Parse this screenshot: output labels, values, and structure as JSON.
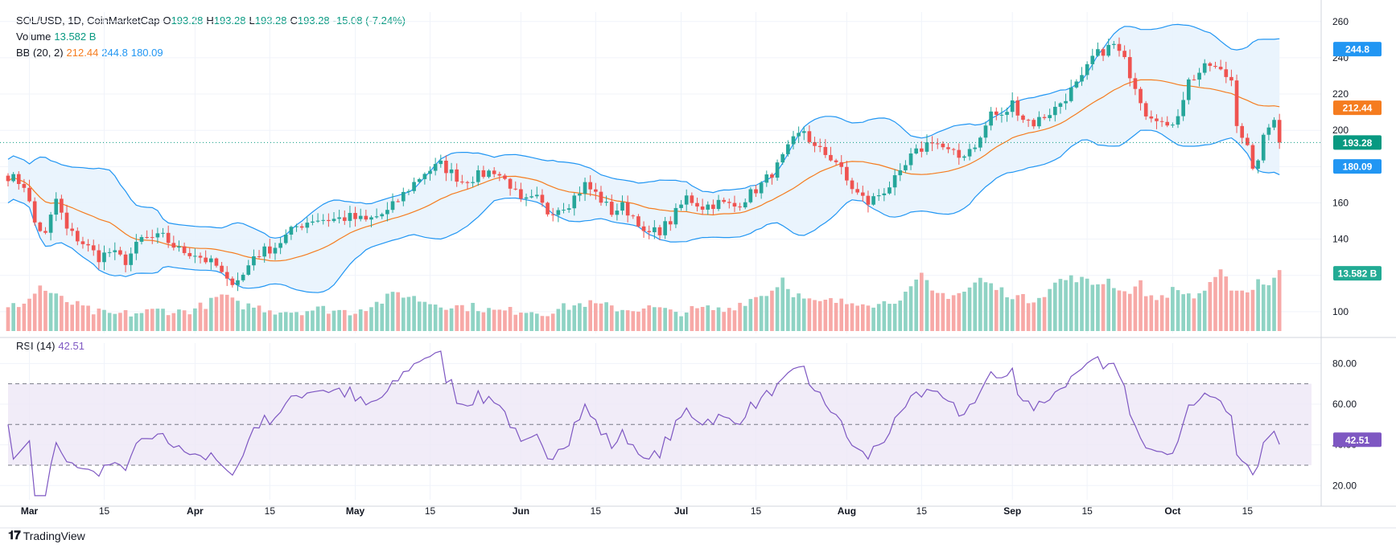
{
  "legend": {
    "symbol": "SOL/USD, 1D, CoinMarketCap",
    "open_label": "O",
    "open": "193.28",
    "high_label": "H",
    "high": "193.28",
    "low_label": "L",
    "low": "193.28",
    "close_label": "C",
    "close": "193.28",
    "change": "-15.08 (-7.24%)",
    "volume_label": "Volume",
    "volume_value": "13.582 B",
    "bb_label": "BB (20, 2)",
    "bb_basis": "212.44",
    "bb_upper": "244.8",
    "bb_lower": "180.09",
    "rsi_label": "RSI (14)",
    "rsi_value": "42.51"
  },
  "badges": {
    "upper": "244.8",
    "basis": "212.44",
    "price": "193.28",
    "lower": "180.09",
    "volume": "13.582 B",
    "rsi": "42.51"
  },
  "branding": {
    "name": "TradingView"
  },
  "colors": {
    "up": "#26a69a",
    "down": "#ef5350",
    "vol_up": "#8fd3c4",
    "vol_down": "#f7a9a7",
    "bb_basis": "#f57c1f",
    "bb_band": "#2196f3",
    "bb_fill": "#e8f3fd",
    "rsi_line": "#7e57c2",
    "rsi_fill": "#ede7f6",
    "price_badge": "#089981",
    "text": "#131722",
    "grid": "#f0f3fa"
  },
  "chart_data": [
    {
      "type": "candlestick",
      "title": "SOL/USD, 1D, CoinMarketCap",
      "y_ticks": [
        100,
        120,
        140,
        160,
        180,
        200,
        220,
        240,
        260
      ],
      "y_tick_labels": [
        "100",
        "",
        "140",
        "160",
        "",
        "200",
        "220",
        "240",
        "260"
      ],
      "ylim": [
        88,
        263
      ],
      "x_ticks": [
        {
          "day": 0,
          "label": "Mar"
        },
        {
          "day": 14,
          "label": "15"
        },
        {
          "day": 31,
          "label": "Apr"
        },
        {
          "day": 45,
          "label": "15"
        },
        {
          "day": 61,
          "label": "May"
        },
        {
          "day": 75,
          "label": "15"
        },
        {
          "day": 92,
          "label": "Jun"
        },
        {
          "day": 106,
          "label": "15"
        },
        {
          "day": 122,
          "label": "Jul"
        },
        {
          "day": 136,
          "label": "15"
        },
        {
          "day": 153,
          "label": "Aug"
        },
        {
          "day": 167,
          "label": "15"
        },
        {
          "day": 184,
          "label": "Sep"
        },
        {
          "day": 198,
          "label": "15"
        },
        {
          "day": 214,
          "label": "Oct"
        },
        {
          "day": 228,
          "label": "15"
        }
      ],
      "x_start_day": -4,
      "x_end_day": 240,
      "current_price": 193.28,
      "grid": true,
      "anchors": [
        [
          -4,
          175
        ],
        [
          -1,
          170
        ],
        [
          1,
          149
        ],
        [
          3,
          142
        ],
        [
          5,
          162
        ],
        [
          7,
          145
        ],
        [
          10,
          138
        ],
        [
          13,
          130
        ],
        [
          15,
          133
        ],
        [
          18,
          128
        ],
        [
          21,
          140
        ],
        [
          25,
          141
        ],
        [
          28,
          134
        ],
        [
          31,
          132
        ],
        [
          35,
          125
        ],
        [
          37,
          116
        ],
        [
          40,
          120
        ],
        [
          42,
          131
        ],
        [
          46,
          136
        ],
        [
          50,
          147
        ],
        [
          53,
          151
        ],
        [
          57,
          151
        ],
        [
          60,
          152
        ],
        [
          63,
          150
        ],
        [
          67,
          155
        ],
        [
          71,
          168
        ],
        [
          74,
          177
        ],
        [
          77,
          181
        ],
        [
          81,
          172
        ],
        [
          84,
          175
        ],
        [
          87,
          178
        ],
        [
          90,
          170
        ],
        [
          92,
          160
        ],
        [
          95,
          162
        ],
        [
          97,
          155
        ],
        [
          101,
          160
        ],
        [
          104,
          170
        ],
        [
          106,
          165
        ],
        [
          109,
          155
        ],
        [
          111,
          158
        ],
        [
          114,
          150
        ],
        [
          115,
          142
        ],
        [
          118,
          145
        ],
        [
          120,
          150
        ],
        [
          123,
          163
        ],
        [
          126,
          158
        ],
        [
          129,
          160
        ],
        [
          132,
          158
        ],
        [
          135,
          165
        ],
        [
          137,
          170
        ],
        [
          140,
          180
        ],
        [
          143,
          194
        ],
        [
          145,
          200
        ],
        [
          147,
          190
        ],
        [
          149,
          187
        ],
        [
          151,
          183
        ],
        [
          153,
          172
        ],
        [
          155,
          165
        ],
        [
          157,
          160
        ],
        [
          160,
          167
        ],
        [
          163,
          175
        ],
        [
          165,
          185
        ],
        [
          167,
          190
        ],
        [
          169,
          195
        ],
        [
          172,
          188
        ],
        [
          174,
          185
        ],
        [
          176,
          190
        ],
        [
          178,
          195
        ],
        [
          180,
          210
        ],
        [
          182,
          207
        ],
        [
          184,
          215
        ],
        [
          186,
          207
        ],
        [
          188,
          204
        ],
        [
          190,
          208
        ],
        [
          192,
          212
        ],
        [
          195,
          222
        ],
        [
          197,
          228
        ],
        [
          199,
          240
        ],
        [
          201,
          244
        ],
        [
          203,
          247
        ],
        [
          205,
          238
        ],
        [
          207,
          225
        ],
        [
          209,
          210
        ],
        [
          211,
          208
        ],
        [
          213,
          200
        ],
        [
          215,
          210
        ],
        [
          217,
          227
        ],
        [
          219,
          232
        ],
        [
          221,
          236
        ],
        [
          223,
          232
        ],
        [
          225,
          228
        ],
        [
          226,
          205
        ],
        [
          228,
          190
        ],
        [
          229,
          176
        ],
        [
          231,
          195
        ],
        [
          233,
          208
        ],
        [
          234,
          193.28
        ]
      ],
      "volume_anchors": [
        [
          -4,
          5.2
        ],
        [
          0,
          7.5
        ],
        [
          2,
          10.5
        ],
        [
          5,
          8
        ],
        [
          9,
          6
        ],
        [
          12,
          4.5
        ],
        [
          15,
          3.8
        ],
        [
          20,
          4.2
        ],
        [
          25,
          5
        ],
        [
          28,
          4.5
        ],
        [
          31,
          5.2
        ],
        [
          34,
          6.8
        ],
        [
          36,
          8.5
        ],
        [
          39,
          6.2
        ],
        [
          42,
          5.8
        ],
        [
          46,
          4.8
        ],
        [
          50,
          4.7
        ],
        [
          55,
          5.2
        ],
        [
          60,
          4.5
        ],
        [
          65,
          6.5
        ],
        [
          69,
          9
        ],
        [
          71,
          8.2
        ],
        [
          74,
          7
        ],
        [
          77,
          6.2
        ],
        [
          80,
          5.8
        ],
        [
          84,
          5.6
        ],
        [
          87,
          4.6
        ],
        [
          90,
          4.7
        ],
        [
          93,
          5
        ],
        [
          96,
          4.2
        ],
        [
          100,
          5.5
        ],
        [
          104,
          6.5
        ],
        [
          108,
          5.8
        ],
        [
          112,
          5
        ],
        [
          115,
          5.5
        ],
        [
          118,
          5.2
        ],
        [
          120,
          4.3
        ],
        [
          123,
          4.7
        ],
        [
          127,
          5.3
        ],
        [
          130,
          4.8
        ],
        [
          133,
          6.5
        ],
        [
          136,
          8
        ],
        [
          139,
          9.5
        ],
        [
          141,
          12.5
        ],
        [
          143,
          9
        ],
        [
          145,
          7.5
        ],
        [
          147,
          6.5
        ],
        [
          150,
          7
        ],
        [
          153,
          6.6
        ],
        [
          156,
          7.2
        ],
        [
          159,
          6.2
        ],
        [
          162,
          7.5
        ],
        [
          165,
          9.5
        ],
        [
          167,
          13
        ],
        [
          169,
          9
        ],
        [
          172,
          8.5
        ],
        [
          175,
          9.2
        ],
        [
          178,
          12.2
        ],
        [
          181,
          10
        ],
        [
          184,
          8.5
        ],
        [
          187,
          7.2
        ],
        [
          190,
          9
        ],
        [
          193,
          12
        ],
        [
          196,
          12.5
        ],
        [
          199,
          11
        ],
        [
          202,
          12
        ],
        [
          205,
          9
        ],
        [
          208,
          11
        ],
        [
          210,
          7.5
        ],
        [
          212,
          8.2
        ],
        [
          214,
          9.5
        ],
        [
          216,
          9.2
        ],
        [
          218,
          8
        ],
        [
          221,
          10.5
        ],
        [
          223,
          13.5
        ],
        [
          225,
          10.5
        ],
        [
          228,
          9
        ],
        [
          230,
          12
        ],
        [
          232,
          11
        ],
        [
          234,
          13.582
        ]
      ],
      "series": [
        {
          "name": "Volume",
          "type": "bar",
          "unit": "B",
          "last": 13.582
        },
        {
          "name": "BB basis (20)",
          "type": "line",
          "last": 212.44
        },
        {
          "name": "BB upper",
          "type": "line",
          "last": 244.8
        },
        {
          "name": "BB lower",
          "type": "line",
          "last": 180.09
        }
      ]
    },
    {
      "type": "line",
      "title": "RSI (14)",
      "y_ticks": [
        20,
        40,
        60,
        80
      ],
      "y_tick_labels": [
        "20.00",
        "40.00",
        "60.00",
        "80.00"
      ],
      "ylim": [
        13,
        90
      ],
      "bands": [
        30,
        50,
        70
      ],
      "series": [
        {
          "name": "RSI (14)",
          "last": 42.51
        }
      ]
    }
  ]
}
